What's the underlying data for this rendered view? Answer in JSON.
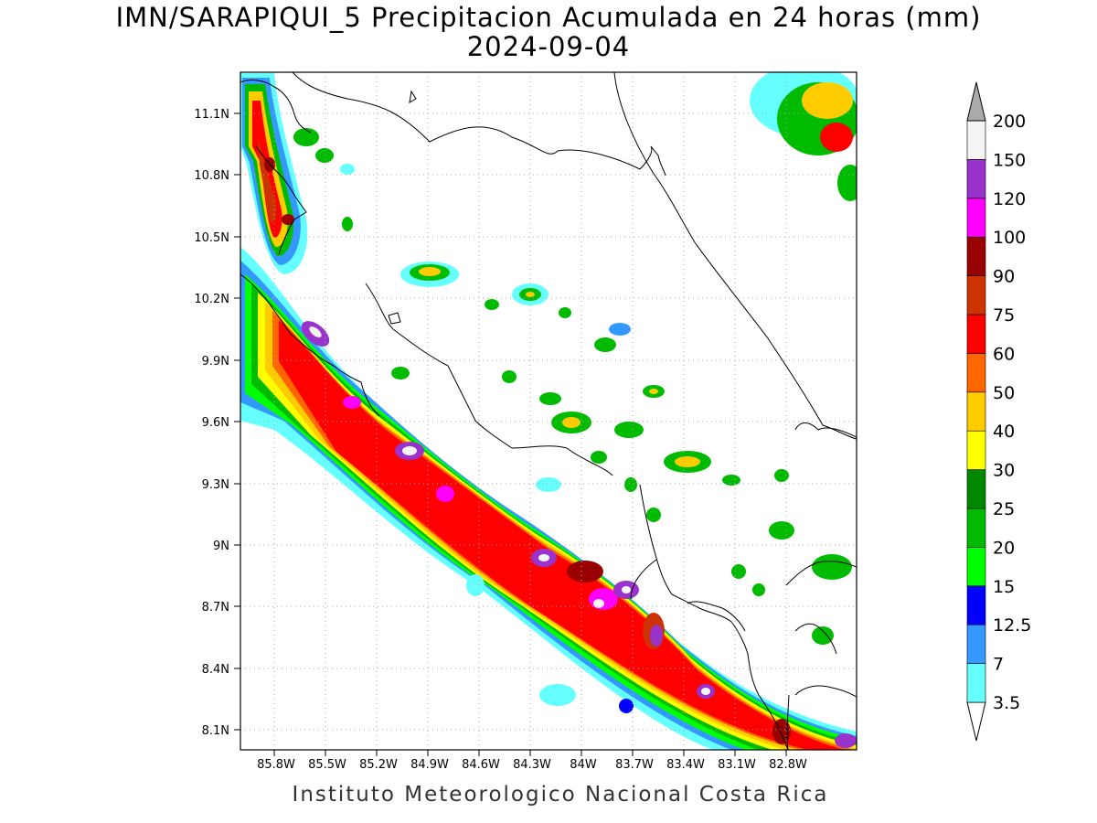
{
  "title": {
    "line1": "IMN/SARAPIQUI_5 Precipitacion Acumulada en 24 horas (mm)",
    "line2": "2024-09-04"
  },
  "footer": "Instituto Meteorologico Nacional Costa Rica",
  "axes": {
    "lon_ticks": [
      "85.8W",
      "85.5W",
      "85.2W",
      "84.9W",
      "84.6W",
      "84.3W",
      "84W",
      "83.7W",
      "83.4W",
      "83.1W",
      "82.8W"
    ],
    "lat_ticks": [
      "11.1N",
      "10.8N",
      "10.5N",
      "10.2N",
      "9.9N",
      "9.6N",
      "9.3N",
      "9N",
      "8.7N",
      "8.4N",
      "8.1N"
    ]
  },
  "colorbar": {
    "levels": [
      "3.5",
      "7",
      "12.5",
      "15",
      "20",
      "25",
      "30",
      "40",
      "50",
      "60",
      "75",
      "90",
      "100",
      "120",
      "150",
      "200"
    ],
    "colors": [
      "#66ffff",
      "#3399ff",
      "#0000ff",
      "#00ff00",
      "#00bb00",
      "#008800",
      "#ffff00",
      "#ffcc00",
      "#ff6600",
      "#ff0000",
      "#cc3300",
      "#990000",
      "#ff00ff",
      "#9933cc",
      "#f5f5f5",
      "#aaaaaa"
    ]
  }
}
